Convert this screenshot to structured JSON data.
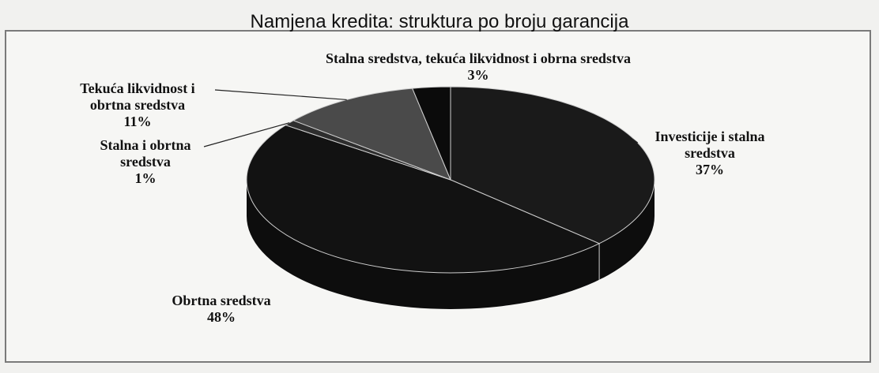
{
  "chart_data": {
    "type": "pie",
    "title": "Namjena kredita: struktura po broju garancija",
    "slices": [
      {
        "label": "Investicije i stalna sredstva",
        "value": 37,
        "display": "37%",
        "color": "#1a1a1a"
      },
      {
        "label": "Obrtna sredstva",
        "value": 48,
        "display": "48%",
        "color": "#121212"
      },
      {
        "label": "Stalna i obrtna sredstva",
        "value": 1,
        "display": "1%",
        "color": "#2e2e2e"
      },
      {
        "label": "Tekuća likvidnost i obrtna sredstva",
        "value": 11,
        "display": "11%",
        "color": "#4a4a4a"
      },
      {
        "label": "Stalna sredstva, tekuća likvidnost i obrna sredstva",
        "value": 3,
        "display": "3%",
        "color": "#0b0b0b"
      }
    ],
    "legend": "none",
    "style": "3d"
  }
}
